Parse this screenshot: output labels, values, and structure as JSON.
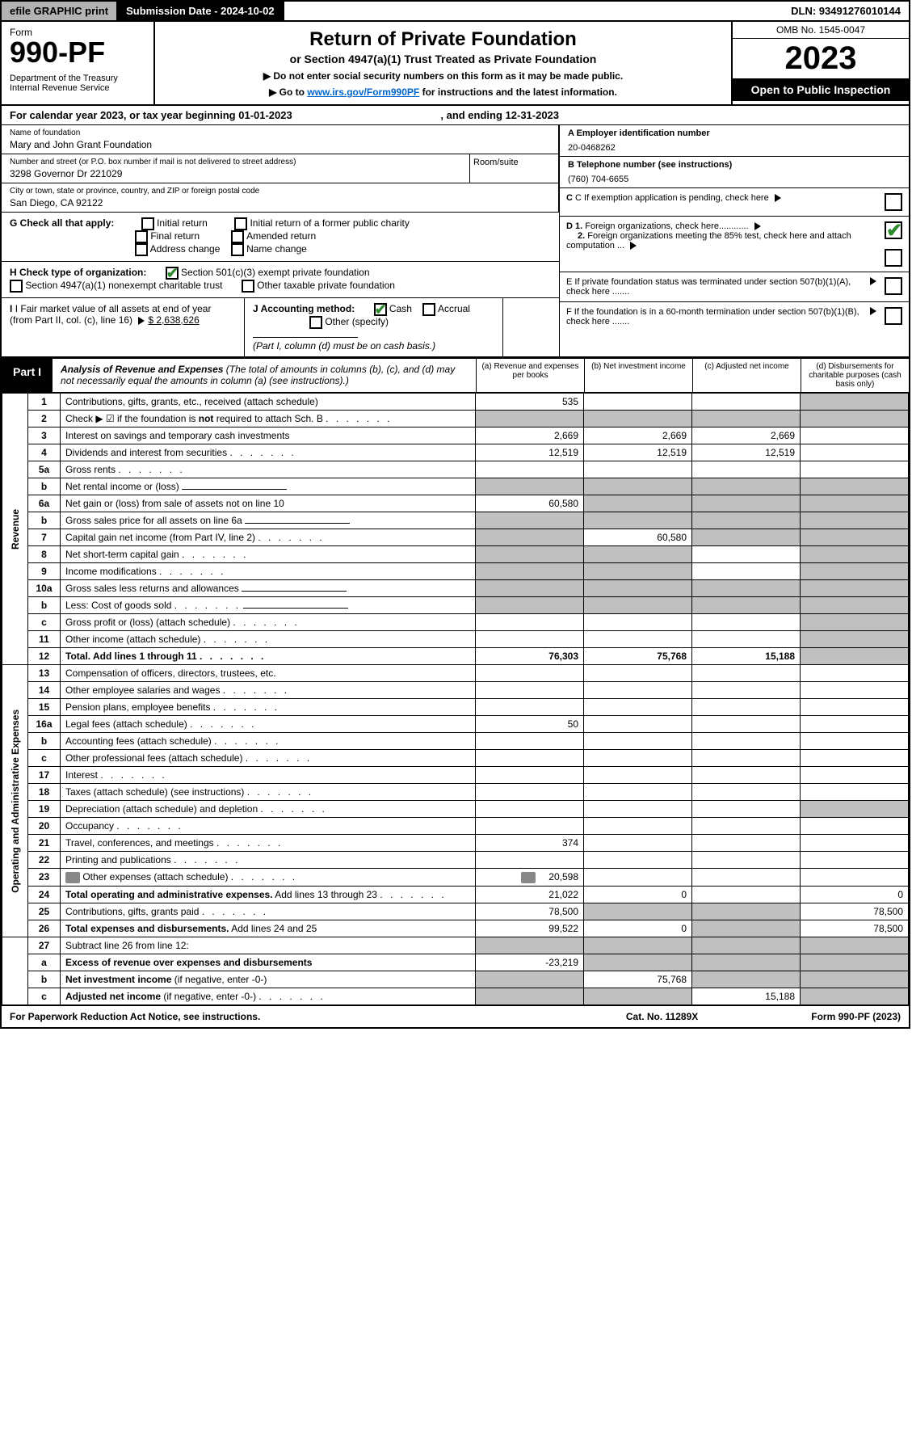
{
  "topbar": {
    "efile": "efile GRAPHIC print",
    "subdate_label": "Submission Date - 2024-10-02",
    "dln": "DLN: 93491276010144"
  },
  "header": {
    "form_label": "Form",
    "form_number": "990-PF",
    "dept": "Department of the Treasury\nInternal Revenue Service",
    "title": "Return of Private Foundation",
    "subtitle": "or Section 4947(a)(1) Trust Treated as Private Foundation",
    "instr1": "▶ Do not enter social security numbers on this form as it may be made public.",
    "instr2_prefix": "▶ Go to ",
    "instr2_link": "www.irs.gov/Form990PF",
    "instr2_suffix": " for instructions and the latest information.",
    "omb": "OMB No. 1545-0047",
    "year": "2023",
    "open": "Open to Public Inspection"
  },
  "calyear": "For calendar year 2023, or tax year beginning 01-01-2023",
  "calyear_end": ", and ending 12-31-2023",
  "name_label": "Name of foundation",
  "name": "Mary and John Grant Foundation",
  "addr_label": "Number and street (or P.O. box number if mail is not delivered to street address)",
  "addr": "3298 Governor Dr 221029",
  "room_label": "Room/suite",
  "city_label": "City or town, state or province, country, and ZIP or foreign postal code",
  "city": "San Diego, CA  92122",
  "ein_label": "A Employer identification number",
  "ein": "20-0468262",
  "phone_label": "B Telephone number (see instructions)",
  "phone": "(760) 704-6655",
  "c_label": "C If exemption application is pending, check here",
  "d1": "D 1. Foreign organizations, check here............",
  "d2": "2. Foreign organizations meeting the 85% test, check here and attach computation ...",
  "e": "E  If private foundation status was terminated under section 507(b)(1)(A), check here .......",
  "f": "F  If the foundation is in a 60-month termination under section 507(b)(1)(B), check here .......",
  "g_label": "G Check all that apply:",
  "g_items": [
    "Initial return",
    "Initial return of a former public charity",
    "Final return",
    "Amended return",
    "Address change",
    "Name change"
  ],
  "h_label": "H Check type of organization:",
  "h1": "Section 501(c)(3) exempt private foundation",
  "h2": "Section 4947(a)(1) nonexempt charitable trust",
  "h3": "Other taxable private foundation",
  "i_label": "I Fair market value of all assets at end of year (from Part II, col. (c), line 16)",
  "i_val": "$  2,638,626",
  "j_label": "J Accounting method:",
  "j_cash": "Cash",
  "j_accrual": "Accrual",
  "j_other": "Other (specify)",
  "j_note": "(Part I, column (d) must be on cash basis.)",
  "part1_label": "Part I",
  "part1_title": "Analysis of Revenue and Expenses",
  "part1_note": " (The total of amounts in columns (b), (c), and (d) may not necessarily equal the amounts in column (a) (see instructions).)",
  "cols": {
    "a": "(a)   Revenue and expenses per books",
    "b": "(b)   Net investment income",
    "c": "(c)   Adjusted net income",
    "d": "(d)   Disbursements for charitable purposes (cash basis only)"
  },
  "side_revenue": "Revenue",
  "side_expenses": "Operating and Administrative Expenses",
  "rows": [
    {
      "n": "1",
      "desc": "Contributions, gifts, grants, etc., received (attach schedule)",
      "a": "535",
      "d_shade": true
    },
    {
      "n": "2",
      "desc": "Check ▶ ☑ if the foundation is <b>not</b> required to attach Sch. B",
      "dots": true,
      "all_shade": true
    },
    {
      "n": "3",
      "desc": "Interest on savings and temporary cash investments",
      "a": "2,669",
      "b": "2,669",
      "c": "2,669"
    },
    {
      "n": "4",
      "desc": "Dividends and interest from securities",
      "dots": true,
      "a": "12,519",
      "b": "12,519",
      "c": "12,519"
    },
    {
      "n": "5a",
      "desc": "Gross rents",
      "dots": true
    },
    {
      "n": "b",
      "desc": "Net rental income or (loss)",
      "sub": true,
      "all_shade": true
    },
    {
      "n": "6a",
      "desc": "Net gain or (loss) from sale of assets not on line 10",
      "a": "60,580",
      "bcd_shade": true
    },
    {
      "n": "b",
      "desc": "Gross sales price for all assets on line 6a",
      "sub": true,
      "all_shade": true
    },
    {
      "n": "7",
      "desc": "Capital gain net income (from Part IV, line 2)",
      "dots": true,
      "a_shade": true,
      "b": "60,580",
      "cd_shade": true
    },
    {
      "n": "8",
      "desc": "Net short-term capital gain",
      "dots": true,
      "ab_shade": true,
      "d_shade": true
    },
    {
      "n": "9",
      "desc": "Income modifications",
      "dots": true,
      "ab_shade": true,
      "d_shade": true
    },
    {
      "n": "10a",
      "desc": "Gross sales less returns and allowances",
      "sub": true,
      "all_shade": true
    },
    {
      "n": "b",
      "desc": "Less: Cost of goods sold",
      "dots": true,
      "sub": true,
      "all_shade": true
    },
    {
      "n": "c",
      "desc": "Gross profit or (loss) (attach schedule)",
      "dots": true,
      "d_shade": true
    },
    {
      "n": "11",
      "desc": "Other income (attach schedule)",
      "dots": true,
      "d_shade": true
    },
    {
      "n": "12",
      "desc": "<b>Total.</b> Add lines 1 through 11",
      "dots": true,
      "a": "76,303",
      "b": "75,768",
      "c": "15,188",
      "d_shade": true,
      "bold": true
    }
  ],
  "exp_rows": [
    {
      "n": "13",
      "desc": "Compensation of officers, directors, trustees, etc."
    },
    {
      "n": "14",
      "desc": "Other employee salaries and wages",
      "dots": true
    },
    {
      "n": "15",
      "desc": "Pension plans, employee benefits",
      "dots": true
    },
    {
      "n": "16a",
      "desc": "Legal fees (attach schedule)",
      "dots": true,
      "a": "50"
    },
    {
      "n": "b",
      "desc": "Accounting fees (attach schedule)",
      "dots": true
    },
    {
      "n": "c",
      "desc": "Other professional fees (attach schedule)",
      "dots": true
    },
    {
      "n": "17",
      "desc": "Interest",
      "dots": true
    },
    {
      "n": "18",
      "desc": "Taxes (attach schedule) (see instructions)",
      "dots": true
    },
    {
      "n": "19",
      "desc": "Depreciation (attach schedule) and depletion",
      "dots": true,
      "d_shade": true
    },
    {
      "n": "20",
      "desc": "Occupancy",
      "dots": true
    },
    {
      "n": "21",
      "desc": "Travel, conferences, and meetings",
      "dots": true,
      "a": "374"
    },
    {
      "n": "22",
      "desc": "Printing and publications",
      "dots": true
    },
    {
      "n": "23",
      "desc": "Other expenses (attach schedule)",
      "dots": true,
      "a": "20,598",
      "icon": true
    },
    {
      "n": "24",
      "desc": "<b>Total operating and administrative expenses.</b> Add lines 13 through 23",
      "dots": true,
      "a": "21,022",
      "b": "0",
      "d": "0"
    },
    {
      "n": "25",
      "desc": "Contributions, gifts, grants paid",
      "dots": true,
      "a": "78,500",
      "bc_shade": true,
      "d": "78,500"
    },
    {
      "n": "26",
      "desc": "<b>Total expenses and disbursements.</b> Add lines 24 and 25",
      "a": "99,522",
      "b": "0",
      "c_shade": true,
      "d": "78,500"
    }
  ],
  "bottom_rows": [
    {
      "n": "27",
      "desc": "Subtract line 26 from line 12:",
      "all_shade": true
    },
    {
      "n": "a",
      "desc": "<b>Excess of revenue over expenses and disbursements</b>",
      "a": "-23,219",
      "bcd_shade": true
    },
    {
      "n": "b",
      "desc": "<b>Net investment income</b> (if negative, enter -0-)",
      "a_shade": true,
      "b": "75,768",
      "cd_shade": true
    },
    {
      "n": "c",
      "desc": "<b>Adjusted net income</b> (if negative, enter -0-)",
      "dots": true,
      "ab_shade": true,
      "c": "15,188",
      "d_shade": true
    }
  ],
  "footer": {
    "left": "For Paperwork Reduction Act Notice, see instructions.",
    "mid": "Cat. No. 11289X",
    "right": "Form 990-PF (2023)"
  }
}
